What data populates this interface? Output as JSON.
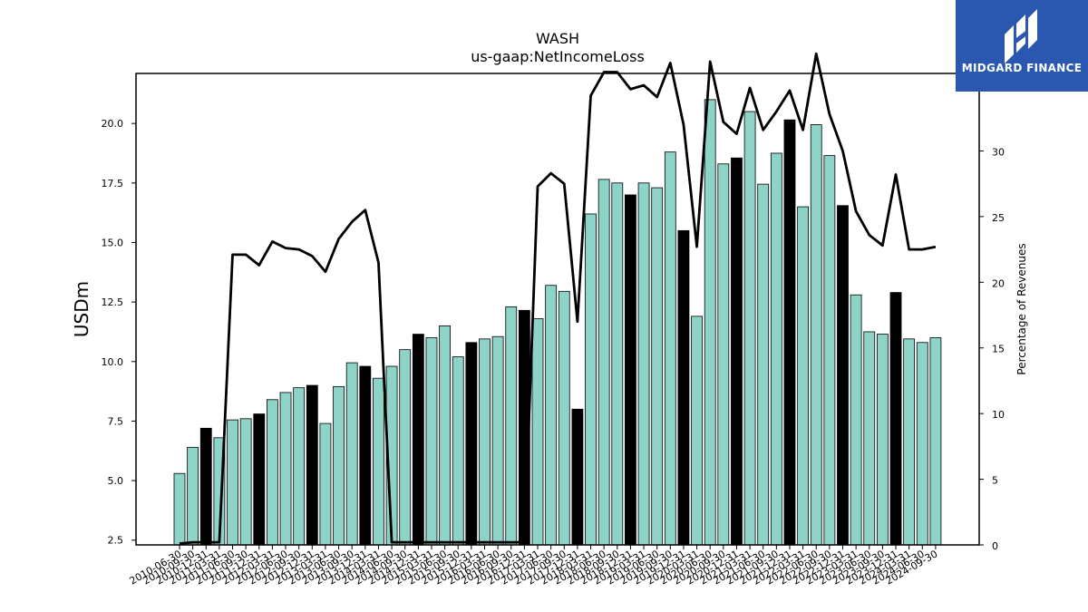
{
  "logo": {
    "text": "MIDGARD FINANCE"
  },
  "chart_data": {
    "type": "bar",
    "title": "WASH",
    "subtitle": "us-gaap:NetIncomeLoss",
    "ylabel": "USDm",
    "ylabel_right": "Percentage of Revenues",
    "ylim": [
      2.3,
      22.1
    ],
    "ylim_right": [
      0,
      35.9
    ],
    "yticks": [
      2.5,
      5.0,
      7.5,
      10.0,
      12.5,
      15.0,
      17.5,
      20.0
    ],
    "yticks_right": [
      0,
      5,
      10,
      15,
      20,
      25,
      30,
      35
    ],
    "grid": false,
    "colors": {
      "quarter_bar": "#8dd3c7",
      "annual_bar": "#000000",
      "line": "#000000",
      "edge": "#000000"
    },
    "categories": [
      "2010-06-30",
      "2010-09-30",
      "2010-12-31",
      "2011-03-31",
      "2011-06-30",
      "2011-09-30",
      "2011-12-31",
      "2012-03-31",
      "2012-06-30",
      "2012-09-30",
      "2012-12-31",
      "2013-03-31",
      "2013-06-30",
      "2013-09-30",
      "2013-12-31",
      "2014-03-31",
      "2014-06-30",
      "2014-09-30",
      "2014-12-31",
      "2015-03-31",
      "2015-06-30",
      "2015-09-30",
      "2015-12-31",
      "2016-03-31",
      "2016-06-30",
      "2016-09-30",
      "2016-12-31",
      "2017-03-31",
      "2017-06-30",
      "2017-09-30",
      "2017-12-31",
      "2018-03-31",
      "2018-06-30",
      "2018-09-30",
      "2018-12-31",
      "2019-03-31",
      "2019-06-30",
      "2019-09-30",
      "2019-12-31",
      "2020-03-31",
      "2020-06-30",
      "2020-09-30",
      "2020-12-31",
      "2021-03-31",
      "2021-06-30",
      "2021-09-30",
      "2021-12-31",
      "2022-03-31",
      "2022-06-30",
      "2022-09-30",
      "2022-12-31",
      "2023-03-31",
      "2023-06-30",
      "2023-09-30",
      "2023-12-31",
      "2024-03-31",
      "2024-06-30",
      "2024-09-30"
    ],
    "values": [
      5.3,
      6.4,
      7.2,
      6.8,
      7.55,
      7.6,
      7.8,
      8.4,
      8.7,
      8.9,
      9.0,
      7.4,
      8.95,
      9.95,
      9.8,
      9.3,
      9.8,
      10.5,
      11.15,
      11.0,
      11.5,
      10.2,
      10.8,
      10.95,
      11.05,
      12.3,
      12.15,
      11.8,
      13.2,
      12.95,
      8.0,
      16.2,
      17.65,
      17.5,
      17.0,
      17.5,
      17.3,
      18.8,
      15.5,
      11.9,
      21.0,
      18.3,
      18.55,
      20.5,
      17.45,
      18.75,
      20.15,
      16.5,
      19.95,
      18.65,
      16.55,
      12.8,
      11.25,
      11.15,
      12.9,
      10.95,
      10.8,
      11.0
    ],
    "annual": [
      false,
      false,
      true,
      false,
      false,
      false,
      true,
      false,
      false,
      false,
      true,
      false,
      false,
      false,
      true,
      false,
      false,
      false,
      true,
      false,
      false,
      false,
      true,
      false,
      false,
      false,
      true,
      false,
      false,
      false,
      true,
      false,
      false,
      false,
      true,
      false,
      false,
      false,
      true,
      false,
      false,
      false,
      true,
      false,
      false,
      false,
      true,
      false,
      false,
      false,
      true,
      false,
      false,
      false,
      true,
      false,
      false,
      false
    ],
    "series": [
      {
        "axis": "right",
        "values": [
          0.1,
          0.2,
          0.2,
          0.2,
          22.1,
          22.1,
          21.3,
          23.1,
          22.6,
          22.5,
          22.0,
          20.8,
          23.3,
          24.6,
          25.5,
          21.5,
          0.2,
          0.2,
          0.2,
          0.2,
          0.2,
          0.2,
          0.2,
          0.2,
          0.2,
          0.2,
          0.2,
          27.3,
          28.3,
          27.5,
          17.0,
          34.2,
          36.0,
          36.0,
          34.7,
          35.0,
          34.1,
          36.7,
          32.0,
          22.7,
          36.8,
          32.2,
          31.3,
          34.8,
          31.6,
          33.0,
          34.6,
          31.6,
          37.4,
          32.8,
          30.0,
          25.4,
          23.6,
          22.8,
          28.2,
          22.5,
          22.5,
          22.7
        ]
      }
    ]
  }
}
